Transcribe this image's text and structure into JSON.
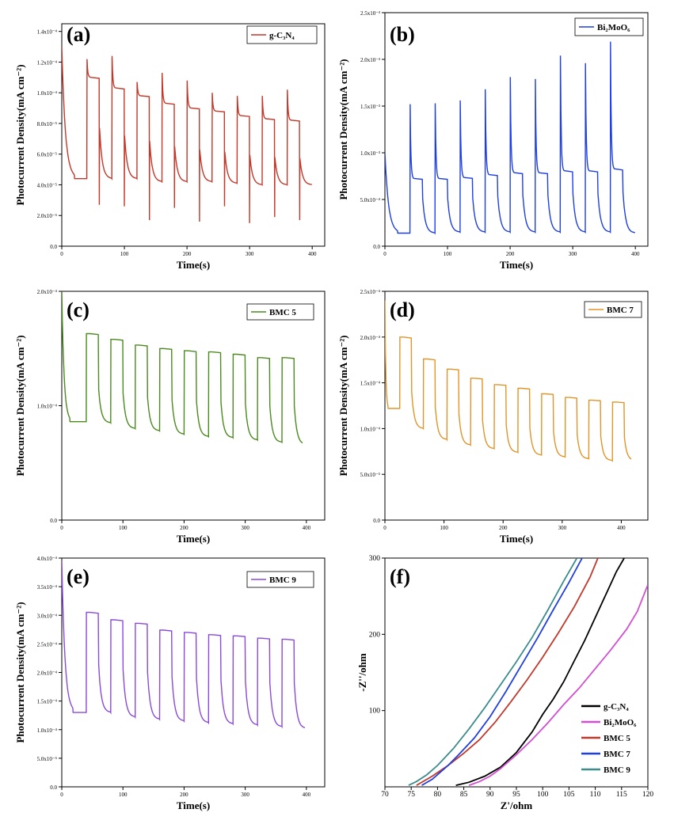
{
  "charts": [
    {
      "id": "a",
      "panel_label": "(a)",
      "xlabel": "Time(s)",
      "ylabel": "Photocurrent Density(mA cm⁻²)",
      "xlim": [
        0,
        420
      ],
      "ylim": [
        0,
        0.000145
      ],
      "xticks": [
        "0",
        "100",
        "200",
        "300",
        "400"
      ],
      "xtick_values": [
        0,
        100,
        200,
        300,
        400
      ],
      "yticks": [
        "0.0",
        "2.0x10⁻⁵",
        "4.0x10⁻⁵",
        "6.0x10⁻⁵",
        "8.0x10⁻⁵",
        "1.0x10⁻⁴",
        "1.2x10⁻⁴",
        "1.4x10⁻⁴"
      ],
      "ytick_values": [
        0,
        2e-05,
        4e-05,
        6e-05,
        8e-05,
        0.0001,
        0.00012,
        0.00014
      ],
      "legend": "g-C₃N₄",
      "color": "#c0392b",
      "trace": {
        "start": 0.00013,
        "first_off": 20,
        "on_times": [
          40,
          80,
          120,
          160,
          200,
          240,
          280,
          320,
          360
        ],
        "on_peaks": [
          0.000122,
          0.000124,
          0.000107,
          0.000113,
          0.000108,
          0.0001,
          9.8e-05,
          9.8e-05,
          0.000102
        ],
        "on_plateaus": [
          0.00011,
          0.000103,
          9.8e-05,
          9.3e-05,
          9e-05,
          8.8e-05,
          8.5e-05,
          8.3e-05,
          8.2e-05
        ],
        "off_lows": [
          4.4e-05,
          4.4e-05,
          4.2e-05,
          4.2e-05,
          4.2e-05,
          4.1e-05,
          4e-05,
          4e-05,
          4e-05
        ],
        "off_spikes": [
          2.7e-05,
          2.6e-05,
          1.7e-05,
          2.5e-05,
          1.6e-05,
          2.6e-05,
          1.5e-05,
          1.9e-05,
          1.7e-05
        ],
        "end": 400
      }
    },
    {
      "id": "b",
      "panel_label": "(b)",
      "xlabel": "Time(s)",
      "ylabel": "Photocurrent Density(mA cm⁻²)",
      "xlim": [
        0,
        420
      ],
      "ylim": [
        0,
        0.0025
      ],
      "xticks": [
        "0",
        "100",
        "200",
        "300",
        "400"
      ],
      "xtick_values": [
        0,
        100,
        200,
        300,
        400
      ],
      "yticks": [
        "0.0",
        "5.0x10⁻⁴",
        "1.0x10⁻³",
        "1.5x10⁻³",
        "2.0x10⁻³",
        "2.5x10⁻³"
      ],
      "ytick_values": [
        0,
        0.0005,
        0.001,
        0.0015,
        0.002,
        0.0025
      ],
      "legend": "Bi₂MoO₆",
      "color": "#1f3fe0",
      "trace": {
        "start": 0.001,
        "first_off": 20,
        "on_times": [
          40,
          80,
          120,
          160,
          200,
          240,
          280,
          320,
          360
        ],
        "on_peaks": [
          0.00152,
          0.00153,
          0.00156,
          0.00168,
          0.00181,
          0.00179,
          0.00204,
          0.00196,
          0.00219
        ],
        "on_plateaus": [
          0.00072,
          0.00072,
          0.00073,
          0.00076,
          0.00078,
          0.00078,
          0.0008,
          0.0008,
          0.00082
        ],
        "off_lows": [
          0.00014,
          0.00015,
          0.00015,
          0.00015,
          0.00015,
          0.00015,
          0.00015,
          0.00015,
          0.00014
        ],
        "end": 400,
        "first_low": 0.00014
      }
    },
    {
      "id": "c",
      "panel_label": "(c)",
      "xlabel": "Time(s)",
      "ylabel": "Photocurrent Density(mA cm⁻²)",
      "xlim": [
        0,
        430
      ],
      "ylim": [
        0,
        0.0002
      ],
      "xticks": [
        "0",
        "100",
        "200",
        "300",
        "400"
      ],
      "xtick_values": [
        0,
        100,
        200,
        300,
        400
      ],
      "yticks": [
        "0.0",
        "1.0x10⁻⁴",
        "2.0x10⁻⁴"
      ],
      "ytick_values": [
        0,
        0.0001,
        0.0002
      ],
      "legend": "BMC 5",
      "color": "#4b8a1f",
      "trace": {
        "start": 0.0002,
        "first_off": 13,
        "on_times": [
          40,
          80,
          120,
          160,
          200,
          240,
          280,
          320,
          360
        ],
        "on_peaks": [
          0.000163,
          0.000158,
          0.000153,
          0.00015,
          0.000148,
          0.000147,
          0.000145,
          0.000142,
          0.000142
        ],
        "on_plateaus": [
          0.000163,
          0.000158,
          0.000153,
          0.00015,
          0.000148,
          0.000147,
          0.000145,
          0.000142,
          0.000142
        ],
        "off_lows": [
          8.5e-05,
          8e-05,
          7.8e-05,
          7.5e-05,
          7.3e-05,
          7.2e-05,
          7e-05,
          6.8e-05,
          6.6e-05
        ],
        "end": 395,
        "first_low": 8.6e-05
      }
    },
    {
      "id": "d",
      "panel_label": "(d)",
      "xlabel": "Time(s)",
      "ylabel": "Photocurrent Density(mA cm⁻²)",
      "xlim": [
        0,
        445
      ],
      "ylim": [
        0,
        0.00025
      ],
      "xticks": [
        "0",
        "100",
        "200",
        "300",
        "400"
      ],
      "xtick_values": [
        0,
        100,
        200,
        300,
        400
      ],
      "yticks": [
        "0.0",
        "5.0x10⁻⁵",
        "1.0x10⁻⁴",
        "1.5x10⁻⁴",
        "2.0x10⁻⁴",
        "2.5x10⁻⁴"
      ],
      "ytick_values": [
        0,
        5e-05,
        0.0001,
        0.00015,
        0.0002,
        0.00025
      ],
      "legend": "BMC 7",
      "color": "#e0952a",
      "trace": {
        "start": 0.00024,
        "first_off": 5,
        "on_times": [
          25,
          65,
          105,
          145,
          185,
          225,
          265,
          305,
          345,
          385
        ],
        "on_peaks": [
          0.0002,
          0.000176,
          0.000165,
          0.000155,
          0.000148,
          0.000144,
          0.000138,
          0.000134,
          0.000131,
          0.000129
        ],
        "on_plateaus": [
          0.0002,
          0.000176,
          0.000165,
          0.000155,
          0.000148,
          0.000144,
          0.000138,
          0.000134,
          0.000131,
          0.000129
        ],
        "off_lows": [
          0.0001,
          8.8e-05,
          8.2e-05,
          7.8e-05,
          7.4e-05,
          7.1e-05,
          6.9e-05,
          6.7e-05,
          6.5e-05,
          6.5e-05
        ],
        "end": 418,
        "first_low": 0.000122
      }
    },
    {
      "id": "e",
      "panel_label": "(e)",
      "xlabel": "Time(s)",
      "ylabel": "Photocurrent Density(mA cm⁻²)",
      "xlim": [
        0,
        430
      ],
      "ylim": [
        0,
        0.0004
      ],
      "xticks": [
        "0",
        "100",
        "200",
        "300",
        "400"
      ],
      "xtick_values": [
        0,
        100,
        200,
        300,
        400
      ],
      "yticks": [
        "0.0",
        "5.0x10⁻⁵",
        "1.0x10⁻⁴",
        "1.5x10⁻⁴",
        "2.0x10⁻⁴",
        "2.5x10⁻⁴",
        "3.0x10⁻⁴",
        "3.5x10⁻⁴",
        "4.0x10⁻⁴"
      ],
      "ytick_values": [
        0,
        5e-05,
        0.0001,
        0.00015,
        0.0002,
        0.00025,
        0.0003,
        0.00035,
        0.0004
      ],
      "legend": "BMC 9",
      "color": "#8a4ad9",
      "trace": {
        "start": 0.000395,
        "first_off": 18,
        "on_times": [
          40,
          80,
          120,
          160,
          200,
          240,
          280,
          320,
          360
        ],
        "on_peaks": [
          0.000305,
          0.000292,
          0.000286,
          0.000274,
          0.00027,
          0.000266,
          0.000264,
          0.00026,
          0.000258
        ],
        "on_plateaus": [
          0.000305,
          0.000292,
          0.000286,
          0.000274,
          0.00027,
          0.000266,
          0.000264,
          0.00026,
          0.000258
        ],
        "off_lows": [
          0.00013,
          0.000122,
          0.000118,
          0.000115,
          0.000112,
          0.00011,
          0.000108,
          0.000105,
          0.000102
        ],
        "end": 398,
        "first_low": 0.00013
      }
    },
    {
      "id": "f",
      "panel_label": "(f)",
      "xlabel": "Z'/ohm",
      "ylabel": "-Z''/ohm",
      "xlim": [
        70,
        120
      ],
      "ylim": [
        0,
        300
      ],
      "xticks": [
        "70",
        "75",
        "80",
        "85",
        "90",
        "95",
        "100",
        "105",
        "110",
        "115",
        "120"
      ],
      "xtick_values": [
        70,
        75,
        80,
        85,
        90,
        95,
        100,
        105,
        110,
        115,
        120
      ],
      "yticks": [
        "100",
        "200",
        "300"
      ],
      "ytick_values": [
        100,
        200,
        300
      ],
      "series": [
        {
          "name": "g-C₃N₄",
          "color": "#000000",
          "x": [
            83.5,
            86,
            89,
            92,
            95,
            98,
            100,
            102,
            104,
            106,
            108,
            110,
            112,
            114,
            115.5
          ],
          "y": [
            2,
            6,
            14,
            26,
            45,
            72,
            95,
            115,
            138,
            165,
            192,
            222,
            252,
            282,
            300
          ]
        },
        {
          "name": "Bi₂MoO₆",
          "color": "#d24fd2",
          "x": [
            86,
            88,
            90,
            92,
            95,
            98,
            101,
            104,
            107,
            110,
            113,
            116,
            118,
            120
          ],
          "y": [
            2,
            7,
            14,
            24,
            42,
            62,
            84,
            108,
            130,
            155,
            180,
            207,
            230,
            265
          ]
        },
        {
          "name": "BMC 5",
          "color": "#c0392b",
          "x": [
            76,
            79,
            82,
            85,
            88,
            91,
            94,
            97,
            100,
            103,
            106,
            109,
            110.5
          ],
          "y": [
            2,
            14,
            28,
            44,
            62,
            85,
            112,
            140,
            170,
            202,
            236,
            275,
            300
          ]
        },
        {
          "name": "BMC 7",
          "color": "#1f3fe0",
          "x": [
            77,
            79,
            82,
            84,
            87,
            90,
            93,
            96,
            99,
            102,
            105,
            107.5
          ],
          "y": [
            2,
            10,
            28,
            42,
            64,
            92,
            125,
            160,
            195,
            232,
            268,
            300
          ]
        },
        {
          "name": "BMC 9",
          "color": "#3d8c8c",
          "x": [
            74.5,
            76,
            78,
            80,
            83,
            86,
            89,
            92,
            95,
            98,
            101,
            104,
            106.5
          ],
          "y": [
            2,
            7,
            16,
            28,
            50,
            76,
            104,
            134,
            164,
            196,
            232,
            270,
            300
          ]
        }
      ]
    }
  ]
}
